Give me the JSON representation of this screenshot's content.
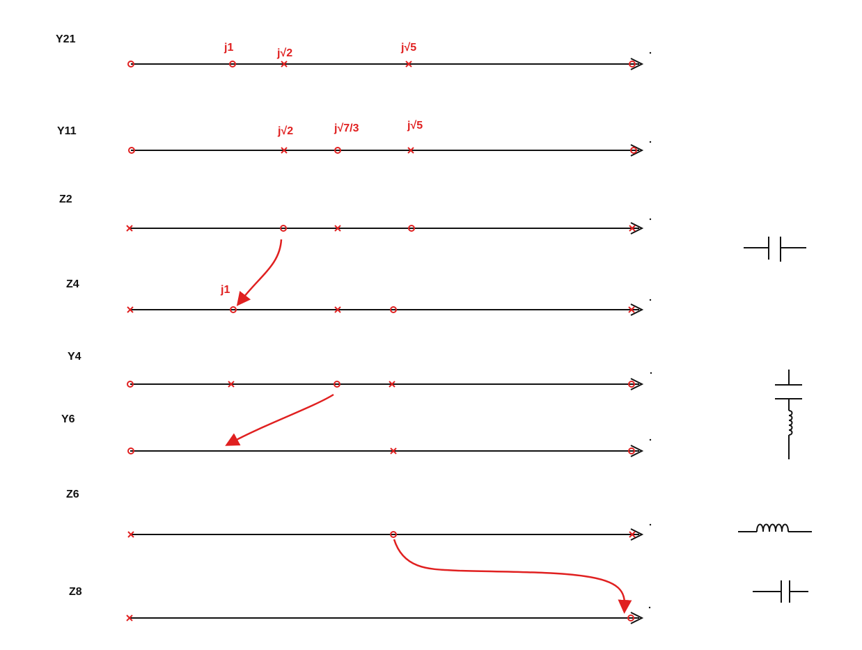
{
  "rows": [
    {
      "label": "Y21",
      "markers": [
        "o",
        "o",
        "x",
        "x",
        "o"
      ],
      "annotations": [
        "j1",
        "j√2",
        "j√5"
      ]
    },
    {
      "label": "Y11",
      "markers": [
        "o",
        "x",
        "o",
        "x",
        "o"
      ],
      "annotations": [
        "j√2",
        "j√7/3",
        "j√5"
      ]
    },
    {
      "label": "Z2",
      "markers": [
        "x",
        "o",
        "x",
        "o",
        "x"
      ],
      "annotations": []
    },
    {
      "label": "Z4",
      "markers": [
        "x",
        "o",
        "x",
        "o",
        "x"
      ],
      "annotations": [
        "j1"
      ]
    },
    {
      "label": "Y4",
      "markers": [
        "o",
        "x",
        "o",
        "x",
        "o"
      ],
      "annotations": []
    },
    {
      "label": "Y6",
      "markers": [
        "o",
        "x",
        "o"
      ],
      "annotations": []
    },
    {
      "label": "Z6",
      "markers": [
        "x",
        "o",
        "x"
      ],
      "annotations": []
    },
    {
      "label": "Z8",
      "markers": [
        "x",
        "o"
      ],
      "annotations": []
    }
  ],
  "colors": {
    "ink": "#111111",
    "marker": "#e02020"
  },
  "components": [
    "capacitor-series",
    "capacitor-inductor-shunt",
    "inductor-series",
    "capacitor-series"
  ]
}
